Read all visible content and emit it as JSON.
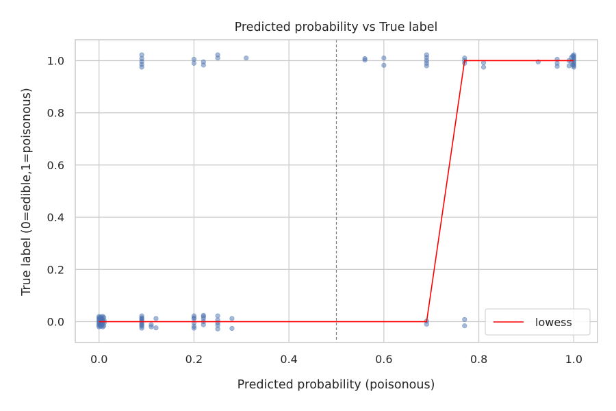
{
  "chart_data": {
    "type": "scatter",
    "title": "Predicted probability vs True label",
    "xlabel": "Predicted probability (poisonous)",
    "ylabel": "True label (0=edible,1=poisonous)",
    "xlim": [
      -0.05,
      1.05
    ],
    "ylim": [
      -0.08,
      1.08
    ],
    "xticks": [
      "0.0",
      "0.2",
      "0.4",
      "0.6",
      "0.8",
      "1.0"
    ],
    "xtick_values": [
      0.0,
      0.2,
      0.4,
      0.6,
      0.8,
      1.0
    ],
    "yticks": [
      "0.0",
      "0.2",
      "0.4",
      "0.6",
      "0.8",
      "1.0"
    ],
    "ytick_values": [
      0.0,
      0.2,
      0.4,
      0.6,
      0.8,
      1.0
    ],
    "grid": true,
    "threshold_line": {
      "x": 0.5,
      "style": "dashed"
    },
    "series": [
      {
        "name": "",
        "kind": "scatter",
        "color": "#4c72b0",
        "points": [
          [
            0.0,
            0.015
          ],
          [
            0.0,
            0.01
          ],
          [
            0.0,
            0.005
          ],
          [
            0.0,
            0.0
          ],
          [
            0.0,
            -0.005
          ],
          [
            0.0,
            -0.01
          ],
          [
            0.0,
            -0.015
          ],
          [
            0.0,
            0.02
          ],
          [
            0.0,
            -0.02
          ],
          [
            0.002,
            0.012
          ],
          [
            0.002,
            -0.012
          ],
          [
            0.003,
            0.006
          ],
          [
            0.003,
            -0.006
          ],
          [
            0.004,
            0.018
          ],
          [
            0.004,
            -0.018
          ],
          [
            0.005,
            0.003
          ],
          [
            0.005,
            -0.003
          ],
          [
            0.006,
            0.014
          ],
          [
            0.006,
            -0.014
          ],
          [
            0.007,
            0.008
          ],
          [
            0.007,
            -0.008
          ],
          [
            0.008,
            0.02
          ],
          [
            0.008,
            -0.02
          ],
          [
            0.009,
            0.0
          ],
          [
            0.01,
            0.016
          ],
          [
            0.01,
            -0.016
          ],
          [
            0.011,
            0.004
          ],
          [
            0.011,
            -0.004
          ],
          [
            0.09,
            0.022
          ],
          [
            0.09,
            0.015
          ],
          [
            0.09,
            0.008
          ],
          [
            0.09,
            0.002
          ],
          [
            0.09,
            -0.004
          ],
          [
            0.09,
            -0.01
          ],
          [
            0.09,
            -0.018
          ],
          [
            0.09,
            -0.025
          ],
          [
            0.09,
            0.012
          ],
          [
            0.09,
            -0.014
          ],
          [
            0.11,
            -0.012
          ],
          [
            0.11,
            -0.02
          ],
          [
            0.12,
            0.012
          ],
          [
            0.12,
            -0.024
          ],
          [
            0.2,
            0.022
          ],
          [
            0.2,
            0.01
          ],
          [
            0.2,
            -0.005
          ],
          [
            0.2,
            -0.018
          ],
          [
            0.2,
            -0.025
          ],
          [
            0.2,
            0.015
          ],
          [
            0.22,
            0.02
          ],
          [
            0.22,
            0.012
          ],
          [
            0.22,
            0.0
          ],
          [
            0.22,
            -0.012
          ],
          [
            0.22,
            0.024
          ],
          [
            0.25,
            0.022
          ],
          [
            0.25,
            0.006
          ],
          [
            0.25,
            -0.005
          ],
          [
            0.25,
            -0.014
          ],
          [
            0.25,
            -0.028
          ],
          [
            0.28,
            0.012
          ],
          [
            0.28,
            -0.026
          ],
          [
            0.69,
            0.002
          ],
          [
            0.69,
            -0.01
          ],
          [
            0.77,
            0.008
          ],
          [
            0.77,
            -0.016
          ],
          [
            0.09,
            1.022
          ],
          [
            0.09,
            1.008
          ],
          [
            0.09,
            0.996
          ],
          [
            0.09,
            0.985
          ],
          [
            0.09,
            0.975
          ],
          [
            0.2,
            1.005
          ],
          [
            0.2,
            0.99
          ],
          [
            0.22,
            0.995
          ],
          [
            0.22,
            0.983
          ],
          [
            0.25,
            1.022
          ],
          [
            0.25,
            1.01
          ],
          [
            0.31,
            1.01
          ],
          [
            0.56,
            1.008
          ],
          [
            0.56,
            1.002
          ],
          [
            0.6,
            1.01
          ],
          [
            0.6,
            0.982
          ],
          [
            0.69,
            1.022
          ],
          [
            0.69,
            1.012
          ],
          [
            0.69,
            1.0
          ],
          [
            0.69,
            0.99
          ],
          [
            0.69,
            0.98
          ],
          [
            0.77,
            1.01
          ],
          [
            0.77,
            1.0
          ],
          [
            0.77,
            0.99
          ],
          [
            0.81,
            0.992
          ],
          [
            0.81,
            0.975
          ],
          [
            0.925,
            0.995
          ],
          [
            0.965,
            1.005
          ],
          [
            0.965,
            0.99
          ],
          [
            0.965,
            0.978
          ],
          [
            0.99,
            1.0
          ],
          [
            0.99,
            0.98
          ],
          [
            1.0,
            1.022
          ],
          [
            1.0,
            1.016
          ],
          [
            1.0,
            1.01
          ],
          [
            1.0,
            1.004
          ],
          [
            1.0,
            0.998
          ],
          [
            1.0,
            0.992
          ],
          [
            1.0,
            0.986
          ],
          [
            1.0,
            0.98
          ],
          [
            1.0,
            0.975
          ],
          [
            0.995,
            1.012
          ],
          [
            0.995,
            0.994
          ],
          [
            0.998,
            1.018
          ],
          [
            0.998,
            0.983
          ]
        ]
      },
      {
        "name": "lowess",
        "kind": "line",
        "color": "#ff0000",
        "points": [
          [
            0.0,
            0.0
          ],
          [
            0.69,
            0.0
          ],
          [
            0.77,
            1.0
          ],
          [
            1.0,
            1.0
          ]
        ]
      }
    ],
    "legend": {
      "placement": "bottom-right",
      "entries": [
        "lowess"
      ]
    }
  }
}
